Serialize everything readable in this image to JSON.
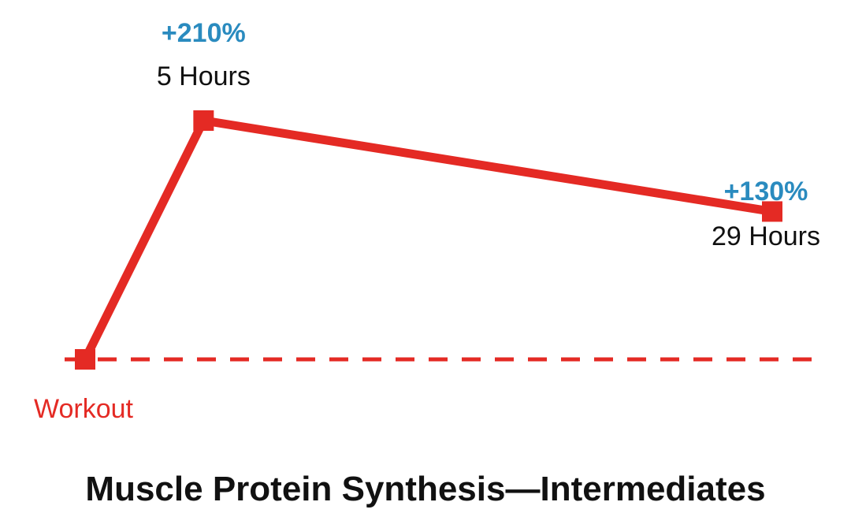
{
  "chart_data": {
    "type": "line",
    "title": "Muscle Protein Synthesis—Intermediates",
    "x": [
      0,
      5,
      29
    ],
    "values": [
      0,
      210,
      130
    ],
    "point_labels": [
      {
        "label": "Workout"
      },
      {
        "value_label": "+210%",
        "time_label": "5 Hours"
      },
      {
        "value_label": "+130%",
        "time_label": "29 Hours"
      }
    ],
    "baseline": 0,
    "ylim": [
      0,
      210
    ],
    "grid": false,
    "legend": "none"
  },
  "colors": {
    "line": "#e42a24",
    "value_label": "#2a8bbf",
    "time_label": "#111111",
    "baseline_label": "#e42a24",
    "title": "#111111"
  }
}
